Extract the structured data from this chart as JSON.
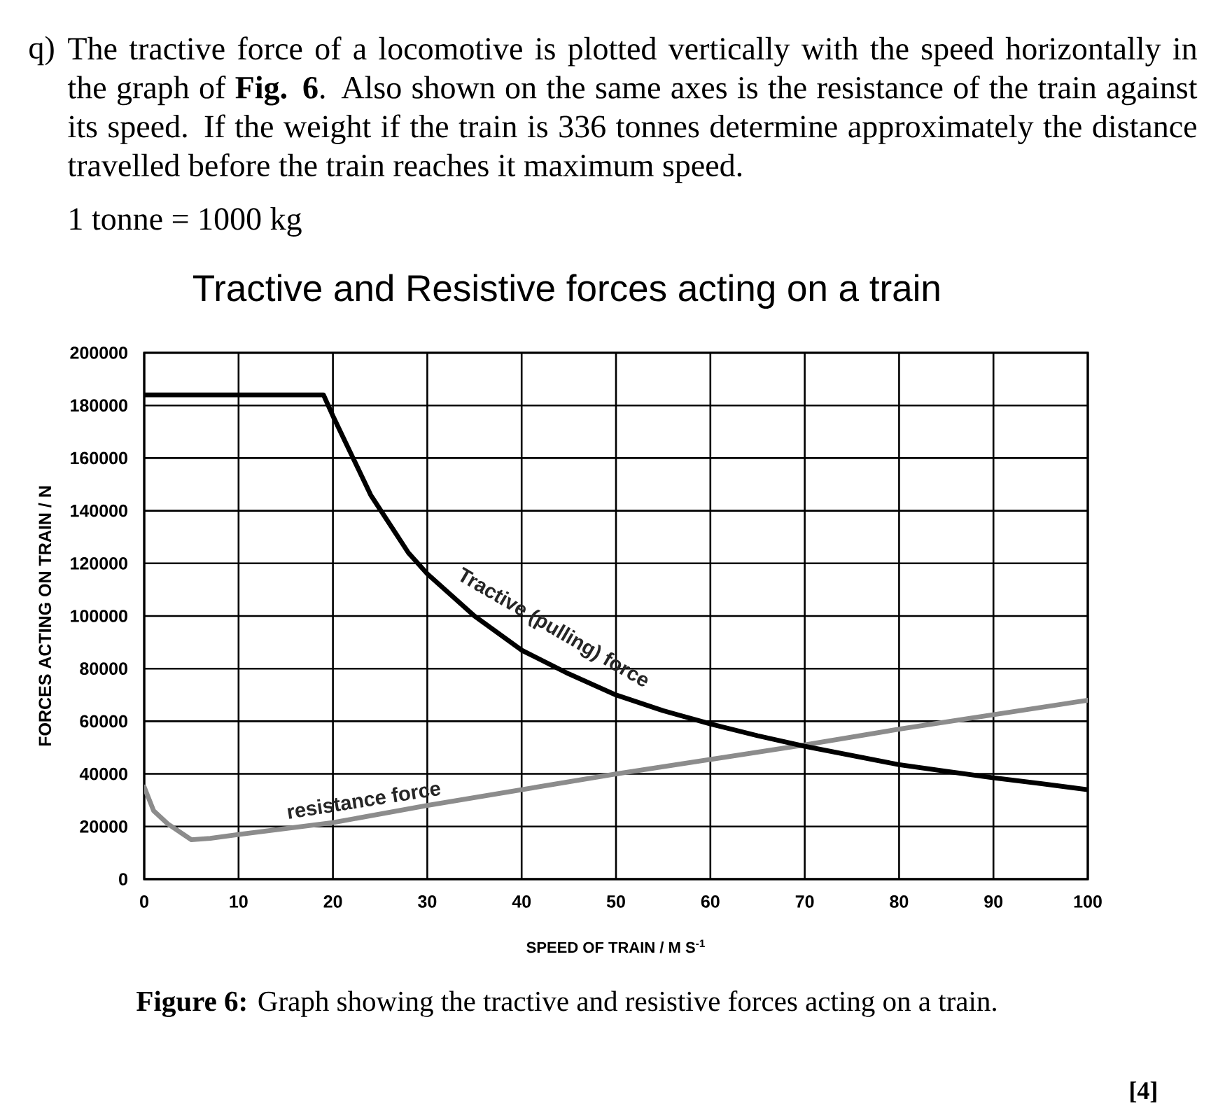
{
  "chart_data": {
    "type": "line",
    "title": "Tractive and Resistive forces acting on a train",
    "xlabel": "SPEED OF TRAIN / M S$^{-1}$",
    "ylabel": "FORCES ACTING ON TRAIN / N",
    "xlim": [
      0,
      100
    ],
    "xticks": [
      0,
      10,
      20,
      30,
      40,
      50,
      60,
      70,
      80,
      90,
      100
    ],
    "ylim": [
      0,
      200000
    ],
    "yticks": [
      0,
      20000,
      40000,
      60000,
      80000,
      100000,
      120000,
      140000,
      160000,
      180000,
      200000
    ],
    "grid": true,
    "line_style": "solid",
    "series": [
      {
        "name": "Tractive (pulling) force",
        "color": "#000000",
        "x": [
          0,
          19,
          20,
          22,
          24,
          26,
          28,
          30,
          35,
          40,
          45,
          50,
          55,
          60,
          65,
          70,
          75,
          80,
          85,
          90,
          95,
          100
        ],
        "values": [
          184000,
          184000,
          176000,
          161000,
          146000,
          135000,
          124000,
          116000,
          100000,
          87000,
          78000,
          70000,
          64000,
          59000,
          54500,
          50500,
          47000,
          43500,
          41000,
          38500,
          36300,
          34000
        ]
      },
      {
        "name": "resistance force",
        "color": "#8c8c8c",
        "x": [
          0,
          1,
          2.5,
          5,
          7,
          10,
          20,
          30,
          40,
          50,
          60,
          70,
          80,
          90,
          100
        ],
        "values": [
          35000,
          26000,
          21000,
          15000,
          15500,
          17000,
          21500,
          28000,
          34000,
          40000,
          45500,
          51000,
          57000,
          62500,
          68000
        ]
      }
    ],
    "annotations": [
      "q)",
      "The tractive force of a locomotive is plotted vertically with the speed horizontally in the graph of **Fig. 6**. Also shown on the same axes is the resistance of the train against its speed. If the weight if the train is 336 tonnes determine approximately the distance travelled before the train reaches it maximum speed.",
      "1 tonne = 1000 kg",
      "**Figure 6:** Graph showing the tractive and resistive forces acting on a train.",
      "[4]"
    ]
  }
}
